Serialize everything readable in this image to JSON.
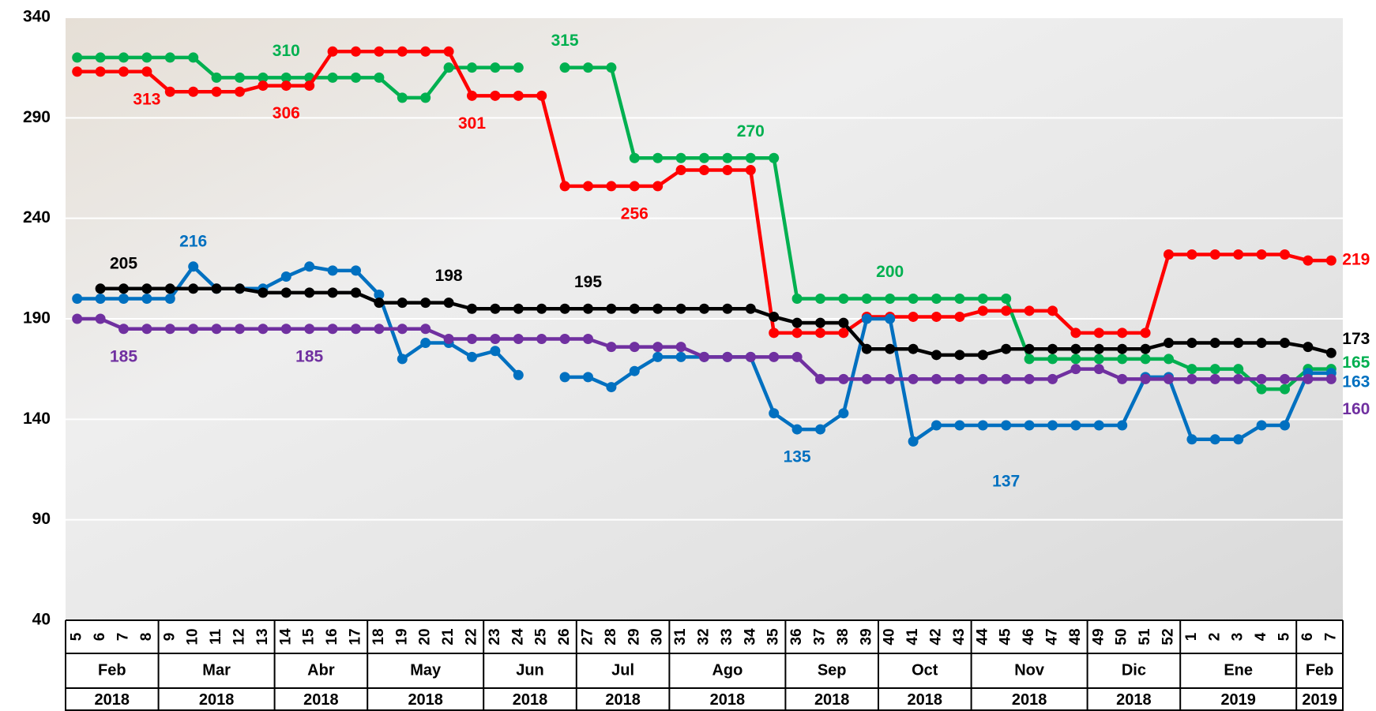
{
  "chart_data": {
    "type": "line",
    "categories": [
      "5",
      "6",
      "7",
      "8",
      "9",
      "10",
      "11",
      "12",
      "13",
      "14",
      "15",
      "16",
      "17",
      "18",
      "19",
      "20",
      "21",
      "22",
      "23",
      "24",
      "25",
      "26",
      "27",
      "28",
      "29",
      "30",
      "31",
      "32",
      "33",
      "34",
      "35",
      "36",
      "37",
      "38",
      "39",
      "40",
      "41",
      "42",
      "43",
      "44",
      "45",
      "46",
      "47",
      "48",
      "49",
      "50",
      "51",
      "52",
      "1",
      "2",
      "3",
      "4",
      "5",
      "6",
      "7"
    ],
    "months": [
      {
        "label": "Feb",
        "year": "2018",
        "span": 4
      },
      {
        "label": "Mar",
        "year": "2018",
        "span": 5
      },
      {
        "label": "Abr",
        "year": "2018",
        "span": 4
      },
      {
        "label": "May",
        "year": "2018",
        "span": 5
      },
      {
        "label": "Jun",
        "year": "2018",
        "span": 4
      },
      {
        "label": "Jul",
        "year": "2018",
        "span": 4
      },
      {
        "label": "Ago",
        "year": "2018",
        "span": 5
      },
      {
        "label": "Sep",
        "year": "2018",
        "span": 4
      },
      {
        "label": "Oct",
        "year": "2018",
        "span": 4
      },
      {
        "label": "Nov",
        "year": "2018",
        "span": 5
      },
      {
        "label": "Dic",
        "year": "2018",
        "span": 4
      },
      {
        "label": "Ene",
        "year": "2019",
        "span": 5
      },
      {
        "label": "Feb",
        "year": "2019",
        "span": 2
      }
    ],
    "series": [
      {
        "color": "#00b050",
        "labeled": [
          9,
          21,
          29,
          35,
          54
        ],
        "values": [
          320,
          320,
          320,
          320,
          320,
          320,
          310,
          310,
          310,
          310,
          310,
          310,
          310,
          310,
          300,
          300,
          315,
          315,
          315,
          315,
          null,
          315,
          315,
          315,
          270,
          270,
          270,
          270,
          270,
          270,
          270,
          200,
          200,
          200,
          200,
          200,
          200,
          200,
          200,
          200,
          200,
          170,
          170,
          170,
          170,
          170,
          170,
          170,
          165,
          165,
          165,
          155,
          155,
          165,
          165
        ]
      },
      {
        "color": "#ff0000",
        "labeled": [
          3,
          9,
          17,
          24,
          54
        ],
        "values": [
          313,
          313,
          313,
          313,
          303,
          303,
          303,
          303,
          306,
          306,
          306,
          323,
          323,
          323,
          323,
          323,
          323,
          301,
          301,
          301,
          301,
          256,
          256,
          256,
          256,
          256,
          264,
          264,
          264,
          264,
          183,
          183,
          183,
          183,
          191,
          191,
          191,
          191,
          191,
          194,
          194,
          194,
          194,
          183,
          183,
          183,
          183,
          222,
          222,
          222,
          222,
          222,
          222,
          219,
          219
        ]
      },
      {
        "color": "#0070c0",
        "labeled": [
          5,
          31,
          40,
          54
        ],
        "values": [
          200,
          200,
          200,
          200,
          200,
          216,
          205,
          205,
          205,
          211,
          216,
          214,
          214,
          202,
          170,
          178,
          178,
          171,
          174,
          162,
          null,
          161,
          161,
          156,
          164,
          171,
          171,
          171,
          171,
          171,
          143,
          135,
          135,
          143,
          190,
          190,
          129,
          137,
          137,
          137,
          137,
          137,
          137,
          137,
          137,
          137,
          161,
          161,
          130,
          130,
          130,
          137,
          137,
          163,
          163
        ]
      },
      {
        "color": "#000000",
        "labeled": [
          2,
          16,
          22,
          54
        ],
        "values": [
          null,
          205,
          205,
          205,
          205,
          205,
          205,
          205,
          203,
          203,
          203,
          203,
          203,
          198,
          198,
          198,
          198,
          195,
          195,
          195,
          195,
          195,
          195,
          195,
          195,
          195,
          195,
          195,
          195,
          195,
          191,
          188,
          188,
          188,
          175,
          175,
          175,
          172,
          172,
          172,
          175,
          175,
          175,
          175,
          175,
          175,
          175,
          178,
          178,
          178,
          178,
          178,
          178,
          176,
          173
        ]
      },
      {
        "color": "#7030a0",
        "labeled": [
          2,
          10,
          54
        ],
        "values": [
          190,
          190,
          185,
          185,
          185,
          185,
          185,
          185,
          185,
          185,
          185,
          185,
          185,
          185,
          185,
          185,
          180,
          180,
          180,
          180,
          180,
          180,
          180,
          176,
          176,
          176,
          176,
          171,
          171,
          171,
          171,
          171,
          160,
          160,
          160,
          160,
          160,
          160,
          160,
          160,
          160,
          160,
          160,
          165,
          165,
          160,
          160,
          160,
          160,
          160,
          160,
          160,
          160,
          160,
          160
        ]
      }
    ],
    "ylim": [
      40,
      340
    ],
    "yticks": [
      40,
      90,
      140,
      190,
      240,
      290,
      340
    ],
    "grid": true
  }
}
